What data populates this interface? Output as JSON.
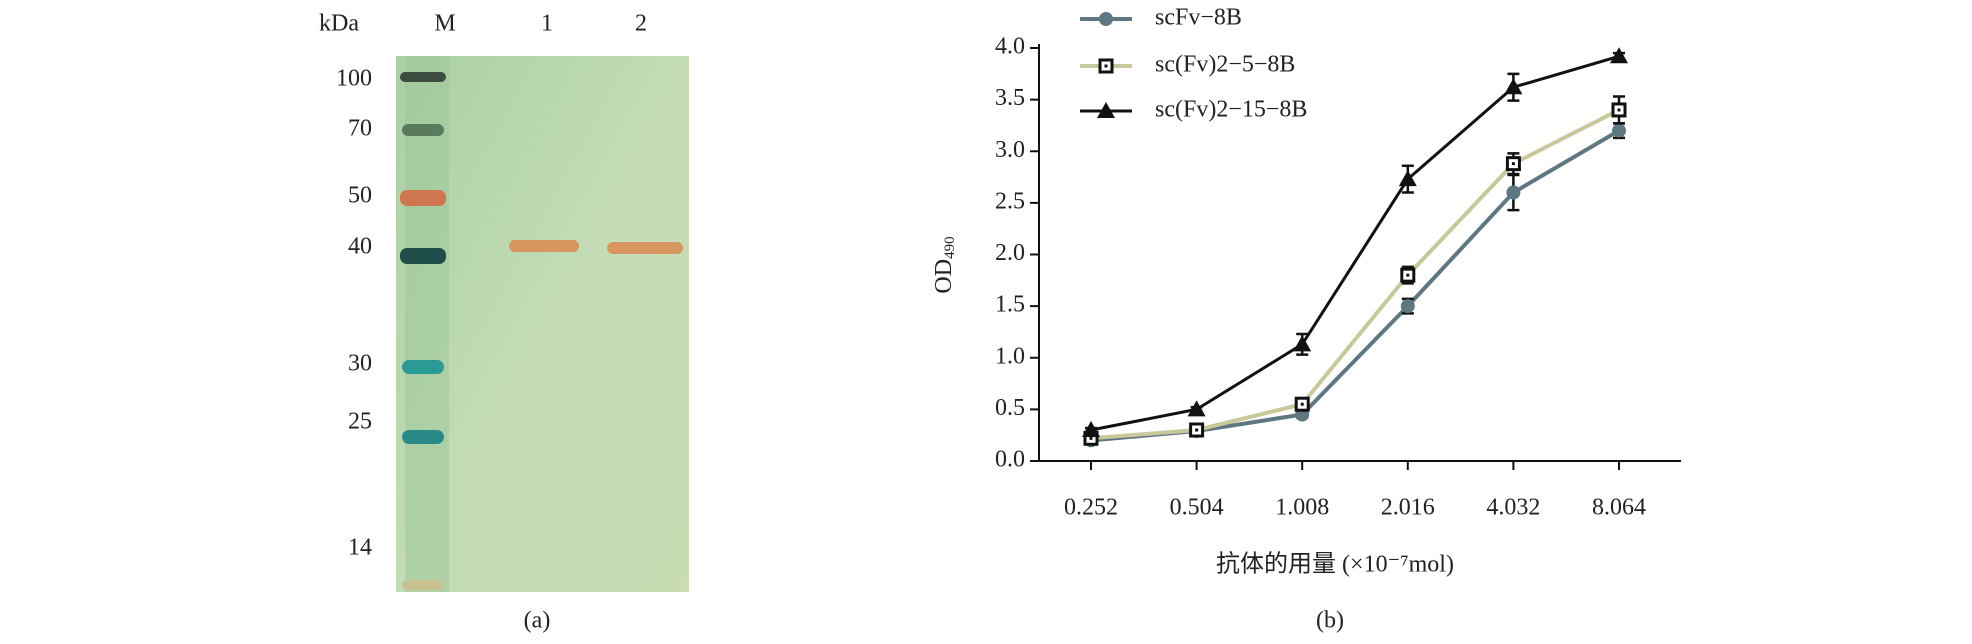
{
  "gel": {
    "header": [
      "kDa",
      "M",
      "1",
      "2"
    ],
    "markers": [
      "100",
      "70",
      "50",
      "40",
      "30",
      "25",
      "14"
    ],
    "caption": "(a)"
  },
  "chart_data": {
    "type": "line",
    "caption": "(b)",
    "y_label": {
      "main": "OD",
      "sub": "490"
    },
    "x_label": "抗体的用量 (×10⁻⁷mol)",
    "categories": [
      "0.252",
      "0.504",
      "1.008",
      "2.016",
      "4.032",
      "8.064"
    ],
    "ylim": [
      0,
      4
    ],
    "yticks": [
      {
        "value": 0,
        "label": "0.0"
      },
      0.5,
      {
        "value": 1,
        "label": "1.0"
      },
      1.5,
      {
        "value": 2,
        "label": "2.0"
      },
      2.5,
      {
        "value": 3,
        "label": "3.0"
      },
      3.5,
      {
        "value": 4,
        "label": "4.0"
      }
    ],
    "series": [
      {
        "name": "scFv−8B",
        "color": "#5f7782",
        "marker": "circle",
        "values": [
          0.2,
          0.29,
          0.45,
          1.5,
          2.6,
          3.2
        ],
        "errors": [
          0.03,
          0.03,
          0.03,
          0.07,
          0.17,
          0.07
        ]
      },
      {
        "name": "sc(Fv)2−5−8B",
        "color": "#c8c89a",
        "marker": "square",
        "values": [
          0.22,
          0.3,
          0.55,
          1.8,
          2.88,
          3.4
        ],
        "errors": [
          0.03,
          0.03,
          0.03,
          0.08,
          0.1,
          0.13
        ]
      },
      {
        "name": "sc(Fv)2−15−8B",
        "color": "#111111",
        "marker": "triangle",
        "values": [
          0.3,
          0.5,
          1.13,
          2.73,
          3.62,
          3.92
        ],
        "errors": [
          0.02,
          0.02,
          0.1,
          0.13,
          0.13,
          0.03
        ]
      }
    ]
  }
}
